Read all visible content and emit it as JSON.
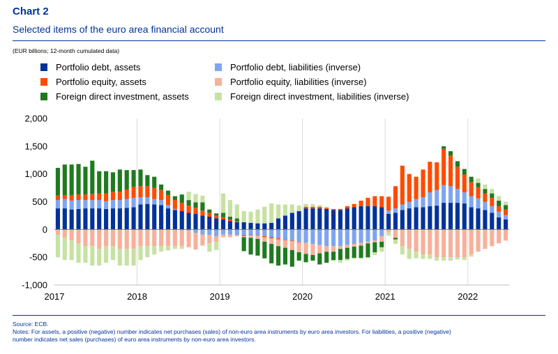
{
  "header": {
    "chart_label": "Chart 2",
    "title": "Selected items of the euro area financial account",
    "units": "(EUR billions; 12-month cumulated data)"
  },
  "legend": {
    "items": [
      {
        "label": "Portfolio debt, assets",
        "color": "#003299"
      },
      {
        "label": "Portfolio debt, liabilities (inverse)",
        "color": "#7EA5F0"
      },
      {
        "label": "Portfolio equity, assets",
        "color": "#FF4B00"
      },
      {
        "label": "Portfolio equity, liabilities (inverse)",
        "color": "#F7B09A"
      },
      {
        "label": "Foreign direct investment, assets",
        "color": "#1F7A1F"
      },
      {
        "label": "Foreign direct investment, liabilities (inverse)",
        "color": "#C6E2A2"
      }
    ]
  },
  "notes": {
    "source": "Source: ECB.",
    "line1": "Notes: For assets, a positive (negative) number indicates net purchases (sales) of non-euro area instruments by euro area investors. For liabilities, a positive (negative)",
    "line2": "number indicates net sales (purchases) of euro area instruments by non-euro area investors."
  },
  "chart_data": {
    "type": "bar",
    "stacked": true,
    "x_labels": [
      "2017",
      "2018",
      "2019",
      "2020",
      "2021",
      "2022"
    ],
    "periods": [
      "2017-01",
      "2017-02",
      "2017-03",
      "2017-04",
      "2017-05",
      "2017-06",
      "2017-07",
      "2017-08",
      "2017-09",
      "2017-10",
      "2017-11",
      "2017-12",
      "2018-01",
      "2018-02",
      "2018-03",
      "2018-04",
      "2018-05",
      "2018-06",
      "2018-07",
      "2018-08",
      "2018-09",
      "2018-10",
      "2018-11",
      "2018-12",
      "2019-01",
      "2019-02",
      "2019-03",
      "2019-04",
      "2019-05",
      "2019-06",
      "2019-07",
      "2019-08",
      "2019-09",
      "2019-10",
      "2019-11",
      "2019-12",
      "2020-01",
      "2020-02",
      "2020-03",
      "2020-04",
      "2020-05",
      "2020-06",
      "2020-07",
      "2020-08",
      "2020-09",
      "2020-10",
      "2020-11",
      "2020-12",
      "2021-01",
      "2021-02",
      "2021-03",
      "2021-04",
      "2021-05",
      "2021-06",
      "2021-07",
      "2021-08",
      "2021-09",
      "2021-10",
      "2021-11",
      "2021-12",
      "2022-01",
      "2022-02",
      "2022-03",
      "2022-04",
      "2022-05",
      "2022-06"
    ],
    "ylim": [
      -1000,
      2000
    ],
    "yticks": [
      {
        "value": 2000,
        "label": "2,000"
      },
      {
        "value": 1500,
        "label": "1,500"
      },
      {
        "value": 1000,
        "label": "1,000"
      },
      {
        "value": 500,
        "label": "500"
      },
      {
        "value": 0,
        "label": "0"
      },
      {
        "value": -500,
        "label": "-500"
      },
      {
        "value": -1000,
        "label": "-1,000"
      }
    ],
    "grid": "vertical at year boundaries",
    "legend_position": "top",
    "series": [
      {
        "name": "Portfolio debt, assets",
        "color": "#003299",
        "values": [
          380,
          380,
          360,
          370,
          380,
          380,
          380,
          370,
          380,
          380,
          390,
          400,
          450,
          460,
          450,
          440,
          380,
          350,
          330,
          300,
          280,
          250,
          230,
          200,
          180,
          150,
          130,
          130,
          120,
          110,
          110,
          120,
          200,
          250,
          300,
          330,
          380,
          380,
          380,
          370,
          350,
          350,
          380,
          400,
          420,
          420,
          420,
          400,
          280,
          300,
          350,
          380,
          400,
          400,
          420,
          430,
          480,
          480,
          480,
          470,
          400,
          380,
          350,
          300,
          220,
          180
        ]
      },
      {
        "name": "Portfolio debt, liabilities (inverse)",
        "color": "#7EA5F0",
        "values": [
          150,
          170,
          160,
          160,
          150,
          150,
          150,
          140,
          150,
          150,
          160,
          170,
          130,
          120,
          100,
          90,
          60,
          20,
          0,
          -20,
          -60,
          -90,
          -100,
          -120,
          -90,
          -90,
          -100,
          -100,
          -100,
          -100,
          -120,
          -140,
          -160,
          -180,
          -200,
          -220,
          -240,
          -260,
          -280,
          -300,
          -300,
          -300,
          -280,
          -260,
          -240,
          -220,
          -200,
          -120,
          60,
          80,
          100,
          120,
          150,
          180,
          250,
          280,
          320,
          300,
          250,
          200,
          200,
          180,
          150,
          120,
          100,
          80
        ]
      },
      {
        "name": "Portfolio equity, assets",
        "color": "#FF4B00",
        "values": [
          80,
          70,
          100,
          100,
          100,
          110,
          120,
          140,
          150,
          150,
          170,
          200,
          200,
          200,
          200,
          180,
          180,
          160,
          150,
          130,
          110,
          90,
          70,
          50,
          40,
          30,
          20,
          -20,
          -10,
          -10,
          -20,
          -20,
          -20,
          -10,
          -10,
          -10,
          30,
          30,
          30,
          20,
          20,
          20,
          40,
          60,
          100,
          150,
          180,
          200,
          250,
          400,
          700,
          500,
          400,
          500,
          550,
          500,
          650,
          550,
          400,
          320,
          250,
          200,
          150,
          150,
          100,
          100
        ]
      },
      {
        "name": "Portfolio equity, liabilities (inverse)",
        "color": "#F7B09A",
        "values": [
          -100,
          -150,
          -200,
          -250,
          -300,
          -300,
          -350,
          -300,
          -300,
          -350,
          -350,
          -350,
          -300,
          -300,
          -300,
          -300,
          -300,
          -300,
          -300,
          -300,
          -300,
          -200,
          -150,
          -100,
          -50,
          -50,
          -20,
          -20,
          -40,
          -60,
          -80,
          -100,
          -120,
          -140,
          -160,
          -180,
          -200,
          -200,
          -150,
          -100,
          -100,
          -50,
          -50,
          -50,
          -50,
          -30,
          -30,
          -100,
          -50,
          -150,
          -300,
          -350,
          -400,
          -450,
          -450,
          -500,
          -500,
          -500,
          -500,
          -500,
          -450,
          -400,
          -350,
          -300,
          -250,
          -200
        ]
      },
      {
        "name": "Foreign direct investment, assets",
        "color": "#1F7A1F",
        "values": [
          500,
          550,
          550,
          550,
          500,
          600,
          400,
          400,
          350,
          400,
          350,
          300,
          300,
          200,
          200,
          100,
          80,
          70,
          150,
          100,
          100,
          150,
          60,
          40,
          80,
          50,
          50,
          -250,
          -300,
          -300,
          -300,
          -350,
          -350,
          -300,
          -300,
          -150,
          -150,
          -100,
          -200,
          -200,
          -150,
          -200,
          -200,
          -200,
          -220,
          -250,
          -180,
          -100,
          0,
          -30,
          0,
          0,
          0,
          0,
          0,
          0,
          50,
          80,
          100,
          100,
          100,
          80,
          80,
          80,
          100,
          80
        ]
      },
      {
        "name": "Foreign direct investment, liabilities (inverse)",
        "color": "#C6E2A2",
        "values": [
          -400,
          -400,
          -350,
          -350,
          -300,
          -350,
          -300,
          -300,
          -250,
          -300,
          -300,
          -300,
          -250,
          -200,
          -150,
          -100,
          -80,
          -50,
          -50,
          150,
          150,
          120,
          -150,
          -150,
          350,
          300,
          250,
          200,
          200,
          250,
          300,
          350,
          250,
          200,
          150,
          100,
          50,
          50,
          30,
          20,
          -20,
          -50,
          -30,
          -20,
          -20,
          -20,
          -50,
          -80,
          -60,
          -80,
          -150,
          -180,
          -120,
          -80,
          -80,
          -60,
          -60,
          -60,
          -40,
          -50,
          -40,
          80,
          80,
          80,
          80,
          60
        ]
      }
    ]
  }
}
